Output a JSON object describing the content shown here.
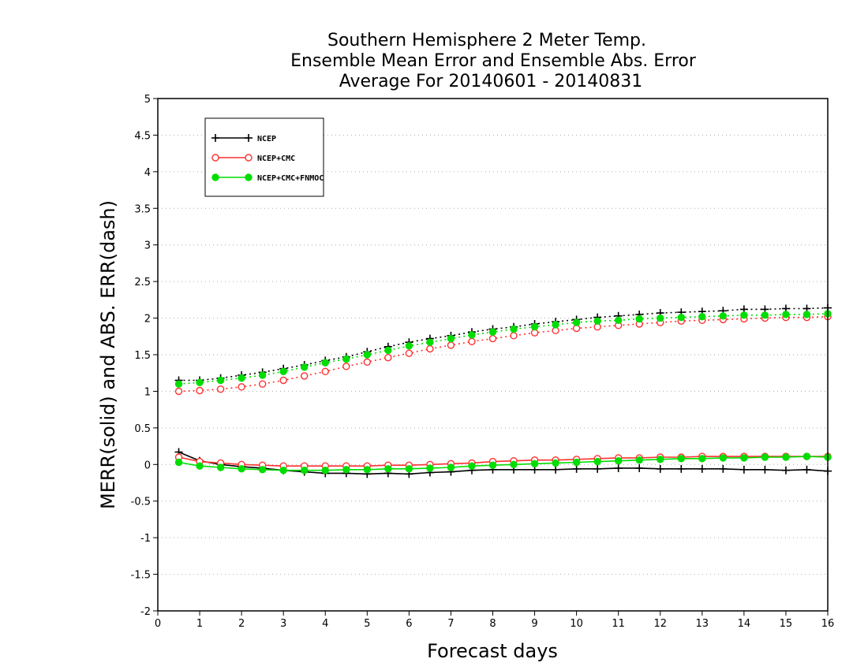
{
  "chart_data": {
    "type": "line",
    "title_lines": [
      "Southern Hemisphere 2 Meter Temp.",
      "Ensemble Mean Error and Ensemble Abs. Error",
      "Average For 20140601 - 20140831"
    ],
    "xlabel": "Forecast days",
    "ylabel": "MERR(solid) and ABS. ERR(dash)",
    "xlim": [
      0,
      16
    ],
    "ylim": [
      -2,
      5
    ],
    "xticks": [
      "0",
      "1",
      "2",
      "3",
      "4",
      "5",
      "6",
      "7",
      "8",
      "9",
      "10",
      "11",
      "12",
      "13",
      "14",
      "15",
      "16"
    ],
    "yticks": [
      "5",
      "4.5",
      "4",
      "3.5",
      "3",
      "2.5",
      "2",
      "1.5",
      "1",
      "0.5",
      "0",
      "-0.5",
      "-1",
      "-1.5",
      "-2"
    ],
    "grid": true,
    "legend_position": "top-left",
    "x": [
      0.5,
      1,
      1.5,
      2,
      2.5,
      3,
      3.5,
      4,
      4.5,
      5,
      5.5,
      6,
      6.5,
      7,
      7.5,
      8,
      8.5,
      9,
      9.5,
      10,
      10.5,
      11,
      11.5,
      12,
      12.5,
      13,
      13.5,
      14,
      14.5,
      15,
      15.5,
      16
    ],
    "series": [
      {
        "name": "NCEP",
        "color": "#000000",
        "marker": "plus",
        "merr": [
          0.17,
          0.05,
          0.0,
          -0.03,
          -0.05,
          -0.08,
          -0.1,
          -0.12,
          -0.12,
          -0.13,
          -0.12,
          -0.13,
          -0.11,
          -0.1,
          -0.08,
          -0.07,
          -0.07,
          -0.07,
          -0.07,
          -0.06,
          -0.06,
          -0.05,
          -0.05,
          -0.06,
          -0.06,
          -0.06,
          -0.06,
          -0.07,
          -0.07,
          -0.08,
          -0.07,
          -0.09
        ],
        "abserr": [
          1.15,
          1.15,
          1.18,
          1.22,
          1.26,
          1.31,
          1.36,
          1.42,
          1.47,
          1.54,
          1.61,
          1.67,
          1.72,
          1.76,
          1.81,
          1.85,
          1.88,
          1.92,
          1.95,
          1.98,
          2.01,
          2.03,
          2.05,
          2.07,
          2.08,
          2.09,
          2.1,
          2.12,
          2.12,
          2.13,
          2.13,
          2.14
        ]
      },
      {
        "name": "NCEP+CMC",
        "color": "#ff3030",
        "marker": "open-circle",
        "merr": [
          0.1,
          0.04,
          0.02,
          0.0,
          -0.01,
          -0.02,
          -0.02,
          -0.02,
          -0.02,
          -0.02,
          -0.01,
          -0.01,
          0.0,
          0.01,
          0.02,
          0.04,
          0.05,
          0.06,
          0.06,
          0.07,
          0.08,
          0.09,
          0.09,
          0.1,
          0.1,
          0.11,
          0.11,
          0.11,
          0.11,
          0.11,
          0.11,
          0.11
        ],
        "abserr": [
          1.0,
          1.01,
          1.03,
          1.06,
          1.1,
          1.15,
          1.21,
          1.27,
          1.34,
          1.4,
          1.46,
          1.52,
          1.58,
          1.63,
          1.68,
          1.72,
          1.76,
          1.8,
          1.83,
          1.86,
          1.88,
          1.9,
          1.92,
          1.94,
          1.96,
          1.97,
          1.98,
          1.99,
          2.0,
          2.01,
          2.01,
          2.02
        ]
      },
      {
        "name": "NCEP+CMC+FNMOC",
        "color": "#00dd00",
        "marker": "filled-circle",
        "merr": [
          0.03,
          -0.02,
          -0.04,
          -0.06,
          -0.07,
          -0.08,
          -0.08,
          -0.08,
          -0.07,
          -0.07,
          -0.06,
          -0.06,
          -0.05,
          -0.04,
          -0.02,
          -0.01,
          0.0,
          0.01,
          0.02,
          0.03,
          0.04,
          0.05,
          0.06,
          0.07,
          0.08,
          0.08,
          0.09,
          0.09,
          0.1,
          0.1,
          0.11,
          0.1
        ],
        "abserr": [
          1.1,
          1.12,
          1.15,
          1.18,
          1.22,
          1.27,
          1.33,
          1.39,
          1.44,
          1.5,
          1.56,
          1.62,
          1.67,
          1.72,
          1.77,
          1.81,
          1.85,
          1.88,
          1.91,
          1.94,
          1.96,
          1.97,
          1.99,
          2.0,
          2.01,
          2.02,
          2.03,
          2.04,
          2.04,
          2.05,
          2.05,
          2.06
        ]
      }
    ]
  }
}
